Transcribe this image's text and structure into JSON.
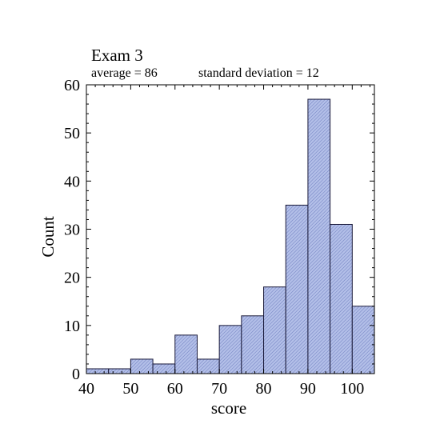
{
  "chart_data": {
    "type": "bar",
    "title": "Exam 3",
    "subtitle_left": "average = 86",
    "subtitle_right": "standard deviation = 12",
    "xlabel": "score",
    "ylabel": "Count",
    "xlim": [
      40,
      105
    ],
    "ylim": [
      0,
      60
    ],
    "bin_width": 5,
    "bins": [
      {
        "start": 40,
        "end": 45,
        "count": 1
      },
      {
        "start": 45,
        "end": 50,
        "count": 1
      },
      {
        "start": 50,
        "end": 55,
        "count": 3
      },
      {
        "start": 55,
        "end": 60,
        "count": 2
      },
      {
        "start": 60,
        "end": 65,
        "count": 8
      },
      {
        "start": 65,
        "end": 70,
        "count": 3
      },
      {
        "start": 70,
        "end": 75,
        "count": 10
      },
      {
        "start": 75,
        "end": 80,
        "count": 12
      },
      {
        "start": 80,
        "end": 85,
        "count": 18
      },
      {
        "start": 85,
        "end": 90,
        "count": 35
      },
      {
        "start": 90,
        "end": 95,
        "count": 57
      },
      {
        "start": 95,
        "end": 100,
        "count": 31
      },
      {
        "start": 100,
        "end": 105,
        "count": 14
      }
    ],
    "xticks": [
      "40",
      "50",
      "60",
      "70",
      "80",
      "90",
      "100"
    ],
    "yticks": [
      "0",
      "10",
      "20",
      "30",
      "40",
      "50",
      "60"
    ],
    "bar_color": "#a9b5e0",
    "bar_edge_color": "#1a1a3a",
    "grid": false
  }
}
